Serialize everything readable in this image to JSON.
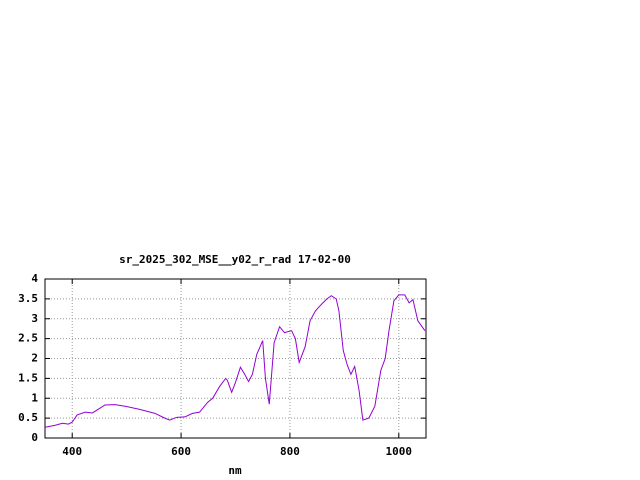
{
  "chart_data": {
    "type": "line",
    "title": "sr_2025_302_MSE__y02_r_rad 17-02-00",
    "xlabel": "nm",
    "x": [
      350,
      369,
      382,
      393,
      400,
      409,
      424,
      437,
      451,
      460,
      479,
      497,
      524,
      552,
      570,
      579,
      592,
      607,
      621,
      634,
      649,
      658,
      671,
      682,
      685,
      693,
      700,
      709,
      717,
      724,
      731,
      739,
      750,
      755,
      762,
      771,
      781,
      790,
      803,
      810,
      817,
      828,
      837,
      847,
      857,
      868,
      876,
      885,
      890,
      898,
      905,
      912,
      919,
      927,
      934,
      945,
      956,
      967,
      975,
      982,
      991,
      1000,
      1011,
      1019,
      1026,
      1035,
      1048
    ],
    "series": [
      {
        "color": "#9400d3",
        "values": [
          0.27,
          0.32,
          0.37,
          0.35,
          0.4,
          0.58,
          0.65,
          0.63,
          0.75,
          0.83,
          0.84,
          0.8,
          0.72,
          0.62,
          0.5,
          0.45,
          0.52,
          0.53,
          0.62,
          0.65,
          0.9,
          1.0,
          1.3,
          1.5,
          1.45,
          1.15,
          1.4,
          1.78,
          1.6,
          1.42,
          1.6,
          2.1,
          2.45,
          1.5,
          0.85,
          2.4,
          2.8,
          2.65,
          2.7,
          2.5,
          1.9,
          2.3,
          2.95,
          3.2,
          3.35,
          3.5,
          3.58,
          3.5,
          3.2,
          2.2,
          1.85,
          1.6,
          1.8,
          1.2,
          0.45,
          0.5,
          0.8,
          1.7,
          2.0,
          2.7,
          3.45,
          3.6,
          3.6,
          3.4,
          3.48,
          2.95,
          2.7
        ]
      }
    ],
    "xlim": [
      350,
      1050
    ],
    "xticks": [
      400,
      600,
      800,
      1000
    ],
    "ylim": [
      0,
      4
    ],
    "yticks": [
      0,
      0.5,
      1,
      1.5,
      2,
      2.5,
      3,
      3.5,
      4
    ],
    "grid": true
  }
}
